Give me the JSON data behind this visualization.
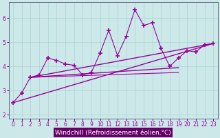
{
  "xlabel": "Windchill (Refroidissement éolien,°C)",
  "bg_color": "#cce8e8",
  "line_color": "#990099",
  "spine_color": "#666688",
  "xlim": [
    -0.5,
    23.5
  ],
  "ylim": [
    1.85,
    6.65
  ],
  "xticks": [
    0,
    1,
    2,
    3,
    4,
    5,
    6,
    7,
    8,
    9,
    10,
    11,
    12,
    13,
    14,
    15,
    16,
    17,
    18,
    19,
    20,
    21,
    22,
    23
  ],
  "yticks": [
    2,
    3,
    4,
    5,
    6
  ],
  "series": [
    {
      "x": [
        0,
        1,
        2,
        3,
        4,
        5,
        6,
        7,
        8,
        9,
        10,
        11,
        12,
        13,
        14,
        15,
        16,
        17,
        18,
        19,
        20,
        21,
        22,
        23
      ],
      "y": [
        2.5,
        2.9,
        3.55,
        3.65,
        4.35,
        4.25,
        4.1,
        4.05,
        3.65,
        3.75,
        4.55,
        5.5,
        4.45,
        5.25,
        6.35,
        5.7,
        5.8,
        4.75,
        4.0,
        4.35,
        4.65,
        4.6,
        4.9,
        4.95
      ],
      "marker": "+",
      "lw": 0.8,
      "ls": "-",
      "ms": 5,
      "mew": 1.2
    },
    {
      "x": [
        0,
        23
      ],
      "y": [
        2.5,
        4.95
      ],
      "marker": "None",
      "lw": 1.0,
      "ls": "-",
      "ms": 0,
      "mew": 0
    },
    {
      "x": [
        2,
        19
      ],
      "y": [
        3.55,
        3.95
      ],
      "marker": "None",
      "lw": 1.0,
      "ls": "-",
      "ms": 0,
      "mew": 0
    },
    {
      "x": [
        2,
        23
      ],
      "y": [
        3.55,
        4.95
      ],
      "marker": "None",
      "lw": 1.0,
      "ls": "-",
      "ms": 0,
      "mew": 0
    },
    {
      "x": [
        2,
        19
      ],
      "y": [
        3.55,
        3.75
      ],
      "marker": "None",
      "lw": 0.8,
      "ls": "-",
      "ms": 0,
      "mew": 0
    }
  ],
  "grid_color": "#aad4d4",
  "xlabel_bg": "#660066",
  "xlabel_color": "#ffffff",
  "xlabel_fontsize": 6.5,
  "tick_fontsize": 5.5
}
